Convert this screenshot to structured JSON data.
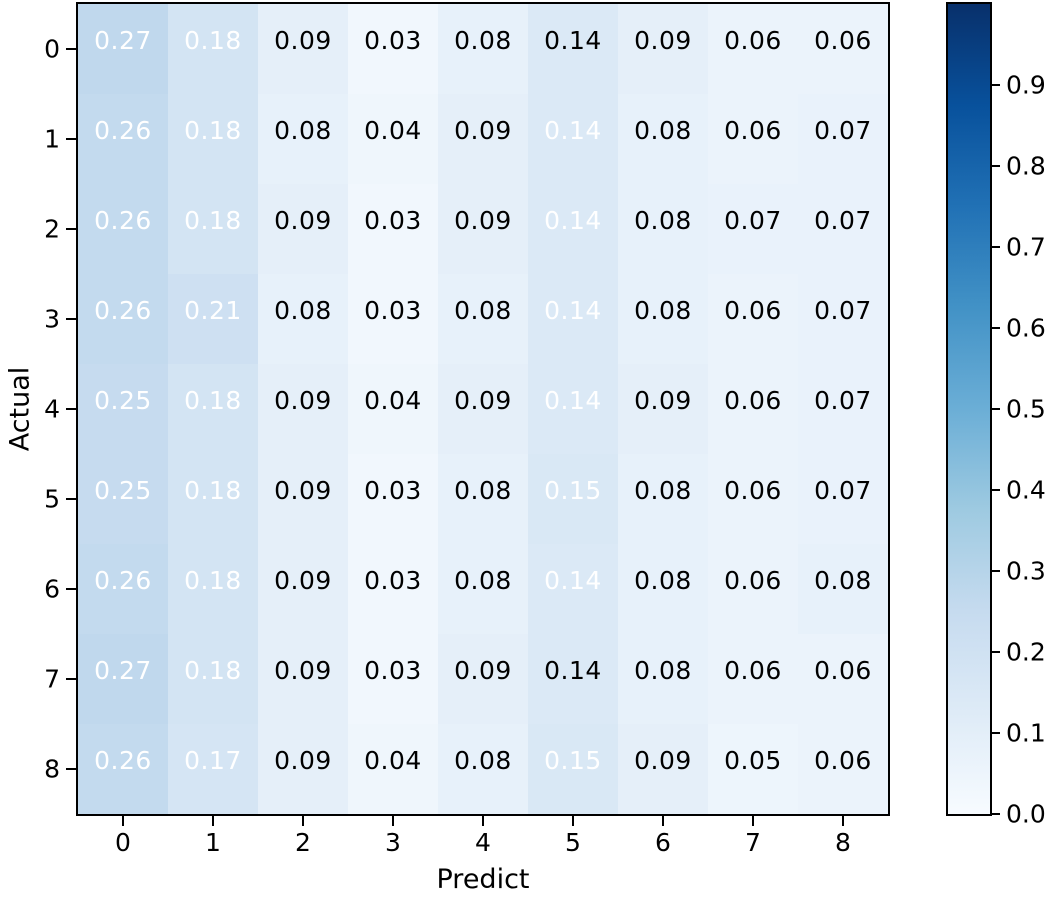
{
  "chart_data": {
    "type": "heatmap",
    "xlabel": "Predict",
    "ylabel": "Actual",
    "x_ticks": [
      "0",
      "1",
      "2",
      "3",
      "4",
      "5",
      "6",
      "7",
      "8"
    ],
    "y_ticks": [
      "0",
      "1",
      "2",
      "3",
      "4",
      "5",
      "6",
      "7",
      "8"
    ],
    "values": [
      [
        0.27,
        0.18,
        0.09,
        0.03,
        0.08,
        0.14,
        0.09,
        0.06,
        0.06
      ],
      [
        0.26,
        0.18,
        0.08,
        0.04,
        0.09,
        0.14,
        0.08,
        0.06,
        0.07
      ],
      [
        0.26,
        0.18,
        0.09,
        0.03,
        0.09,
        0.14,
        0.08,
        0.07,
        0.07
      ],
      [
        0.26,
        0.21,
        0.08,
        0.03,
        0.08,
        0.14,
        0.08,
        0.06,
        0.07
      ],
      [
        0.25,
        0.18,
        0.09,
        0.04,
        0.09,
        0.14,
        0.09,
        0.06,
        0.07
      ],
      [
        0.25,
        0.18,
        0.09,
        0.03,
        0.08,
        0.15,
        0.08,
        0.06,
        0.07
      ],
      [
        0.26,
        0.18,
        0.09,
        0.03,
        0.08,
        0.14,
        0.08,
        0.06,
        0.08
      ],
      [
        0.27,
        0.18,
        0.09,
        0.03,
        0.09,
        0.14,
        0.08,
        0.06,
        0.06
      ],
      [
        0.26,
        0.17,
        0.09,
        0.04,
        0.08,
        0.15,
        0.09,
        0.05,
        0.06
      ]
    ],
    "annotation_format": "2dp",
    "annotation_colors": [
      [
        "white",
        "white",
        "black",
        "black",
        "black",
        "black",
        "black",
        "black",
        "black"
      ],
      [
        "white",
        "white",
        "black",
        "black",
        "black",
        "white",
        "black",
        "black",
        "black"
      ],
      [
        "white",
        "white",
        "black",
        "black",
        "black",
        "white",
        "black",
        "black",
        "black"
      ],
      [
        "white",
        "white",
        "black",
        "black",
        "black",
        "white",
        "black",
        "black",
        "black"
      ],
      [
        "white",
        "white",
        "black",
        "black",
        "black",
        "white",
        "black",
        "black",
        "black"
      ],
      [
        "white",
        "white",
        "black",
        "black",
        "black",
        "white",
        "black",
        "black",
        "black"
      ],
      [
        "white",
        "white",
        "black",
        "black",
        "black",
        "white",
        "black",
        "black",
        "black"
      ],
      [
        "white",
        "white",
        "black",
        "black",
        "black",
        "black",
        "black",
        "black",
        "black"
      ],
      [
        "white",
        "white",
        "black",
        "black",
        "black",
        "white",
        "black",
        "black",
        "black"
      ]
    ],
    "colormap": "Blues",
    "colormap_stops": [
      "#f7fbff",
      "#deebf7",
      "#c6dbef",
      "#9ecae1",
      "#6baed6",
      "#4292c6",
      "#2171b5",
      "#08519c",
      "#08306b"
    ],
    "vmin": 0.0,
    "vmax": 1.0,
    "grid": false,
    "colorbar": {
      "position": "right",
      "tick_labels": [
        "0.0",
        "0.1",
        "0.2",
        "0.3",
        "0.4",
        "0.5",
        "0.6",
        "0.7",
        "0.8",
        "0.9"
      ],
      "tick_values": [
        0.0,
        0.1,
        0.2,
        0.3,
        0.4,
        0.5,
        0.6,
        0.7,
        0.8,
        0.9
      ]
    },
    "text_color_black": "#000000",
    "text_color_white": "#ffffff"
  }
}
